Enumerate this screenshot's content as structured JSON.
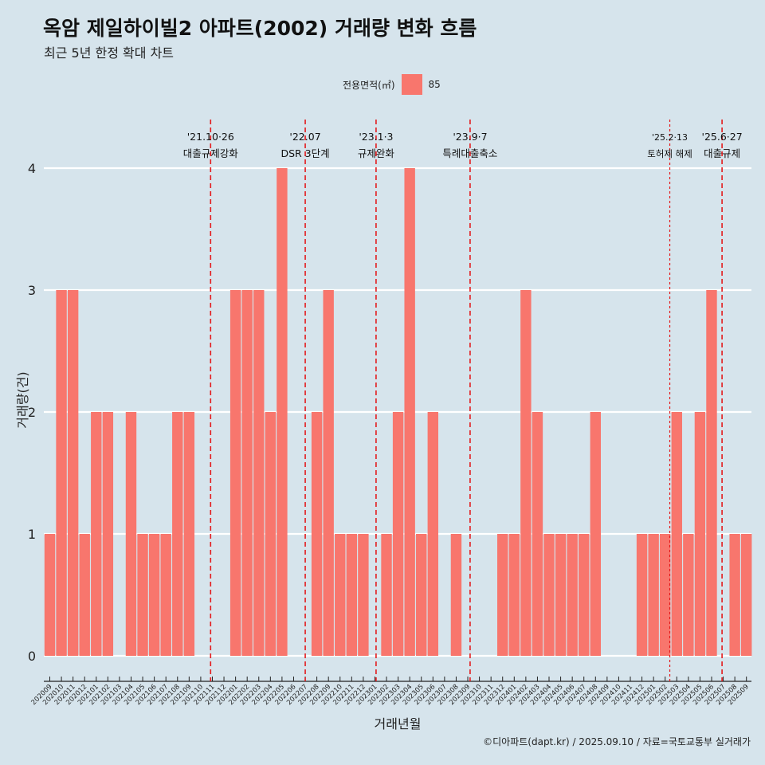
{
  "title": "옥암 제일하이빌2 아파트(2002) 거래량 변화 흐름",
  "subtitle": "최근 5년 한정 확대 차트",
  "legend": {
    "title": "전용면적(㎡)",
    "label": "85"
  },
  "caption": "©디아파트(dapt.kr) / 2025.09.10 / 자료=국토교통부 실거래가",
  "colors": {
    "background": "#d6e4ec",
    "bar": "#f8766d",
    "event_line": "#e41a1c",
    "grid": "#ffffff"
  },
  "chart_data": {
    "type": "bar",
    "xlabel": "거래년월",
    "ylabel": "거래량(건)",
    "ylim": [
      0,
      4
    ],
    "yticks": [
      0,
      1,
      2,
      3,
      4
    ],
    "grid": true,
    "legend_position": "top",
    "categories": [
      "202009",
      "202010",
      "202011",
      "202012",
      "202101",
      "202102",
      "202103",
      "202104",
      "202105",
      "202106",
      "202107",
      "202108",
      "202109",
      "202110",
      "202111",
      "202112",
      "202201",
      "202202",
      "202203",
      "202204",
      "202205",
      "202206",
      "202207",
      "202208",
      "202209",
      "202210",
      "202211",
      "202212",
      "202301",
      "202302",
      "202303",
      "202304",
      "202305",
      "202306",
      "202307",
      "202308",
      "202309",
      "202310",
      "202311",
      "202312",
      "202401",
      "202402",
      "202403",
      "202404",
      "202405",
      "202406",
      "202407",
      "202408",
      "202409",
      "202410",
      "202411",
      "202412",
      "202501",
      "202502",
      "202503",
      "202504",
      "202505",
      "202506",
      "202507",
      "202508",
      "202509"
    ],
    "series": [
      {
        "name": "85",
        "values": [
          1,
          3,
          3,
          1,
          2,
          2,
          0,
          2,
          1,
          1,
          1,
          2,
          2,
          0,
          0,
          0,
          3,
          3,
          3,
          2,
          4,
          0,
          0,
          2,
          3,
          1,
          1,
          1,
          0,
          1,
          2,
          4,
          1,
          2,
          0,
          1,
          0,
          0,
          0,
          1,
          1,
          3,
          2,
          1,
          1,
          1,
          1,
          2,
          0,
          0,
          0,
          1,
          1,
          1,
          2,
          1,
          2,
          3,
          0,
          1,
          1
        ]
      }
    ],
    "events": [
      {
        "after": "202110",
        "frac": 0.85,
        "date": "'21.10·26",
        "label": "대출규제강화",
        "style": "dashed"
      },
      {
        "after": "202207",
        "frac": 0.0,
        "date": "'22.07",
        "label": "DSR 3단계",
        "style": "dashed"
      },
      {
        "after": "202301",
        "frac": 0.1,
        "date": "'23.1·3",
        "label": "규제완화",
        "style": "dashed"
      },
      {
        "after": "202309",
        "frac": 0.2,
        "date": "'23.9·7",
        "label": "특례대출축소",
        "style": "dashed"
      },
      {
        "after": "202502",
        "frac": 0.4,
        "date": "'25.2·13",
        "label": "토허제 해제",
        "style": "dotted"
      },
      {
        "after": "202506",
        "frac": 0.9,
        "date": "'25.6·27",
        "label": "대출규제",
        "style": "dashed"
      }
    ]
  }
}
